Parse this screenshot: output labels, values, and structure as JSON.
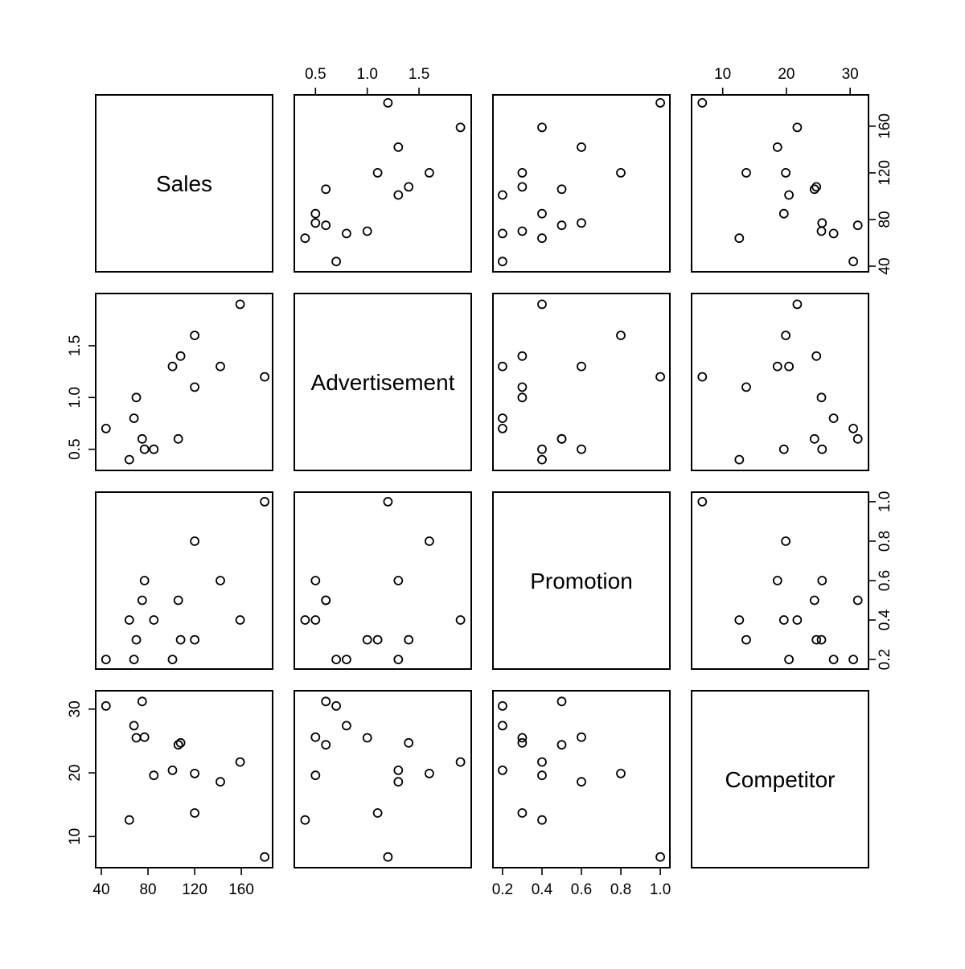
{
  "chart_data": {
    "type": "scatter",
    "variables": [
      "Sales",
      "Advertisement",
      "Promotion",
      "Competitor"
    ],
    "observations": {
      "Sales": [
        180,
        159,
        142,
        120,
        120,
        108,
        106,
        101,
        85,
        77,
        75,
        70,
        68,
        64,
        44
      ],
      "Advertisement": [
        1.2,
        1.9,
        1.3,
        1.6,
        1.1,
        1.4,
        0.6,
        1.3,
        0.5,
        0.5,
        0.6,
        1.0,
        0.8,
        0.4,
        0.7
      ],
      "Promotion": [
        1.0,
        0.4,
        0.6,
        0.8,
        0.3,
        0.3,
        0.5,
        0.2,
        0.4,
        0.6,
        0.5,
        0.3,
        0.2,
        0.4,
        0.2
      ],
      "Competitor": [
        6.8,
        21.7,
        18.6,
        19.9,
        13.7,
        24.7,
        24.4,
        20.4,
        19.6,
        25.6,
        31.2,
        25.5,
        27.4,
        12.6,
        30.5
      ]
    },
    "axis_ranges": {
      "Sales": [
        40,
        182
      ],
      "Advertisement": [
        0.35,
        1.95
      ],
      "Promotion": [
        0.18,
        1.02
      ],
      "Competitor": [
        6,
        32
      ]
    },
    "ticks": {
      "Sales": [
        40,
        80,
        120,
        160
      ],
      "Advertisement": [
        0.5,
        1.0,
        1.5
      ],
      "Promotion": [
        0.2,
        0.4,
        0.6,
        0.8,
        1.0
      ],
      "Competitor": [
        10,
        20,
        30
      ]
    },
    "tick_labels": {
      "Sales": [
        "40",
        "80",
        "120",
        "160"
      ],
      "Advertisement": [
        "0.5",
        "1.0",
        "1.5"
      ],
      "Promotion": [
        "0.2",
        "0.4",
        "0.6",
        "0.8",
        "1.0"
      ],
      "Competitor": [
        "10",
        "20",
        "30"
      ]
    },
    "grid": false,
    "legend": "none"
  }
}
